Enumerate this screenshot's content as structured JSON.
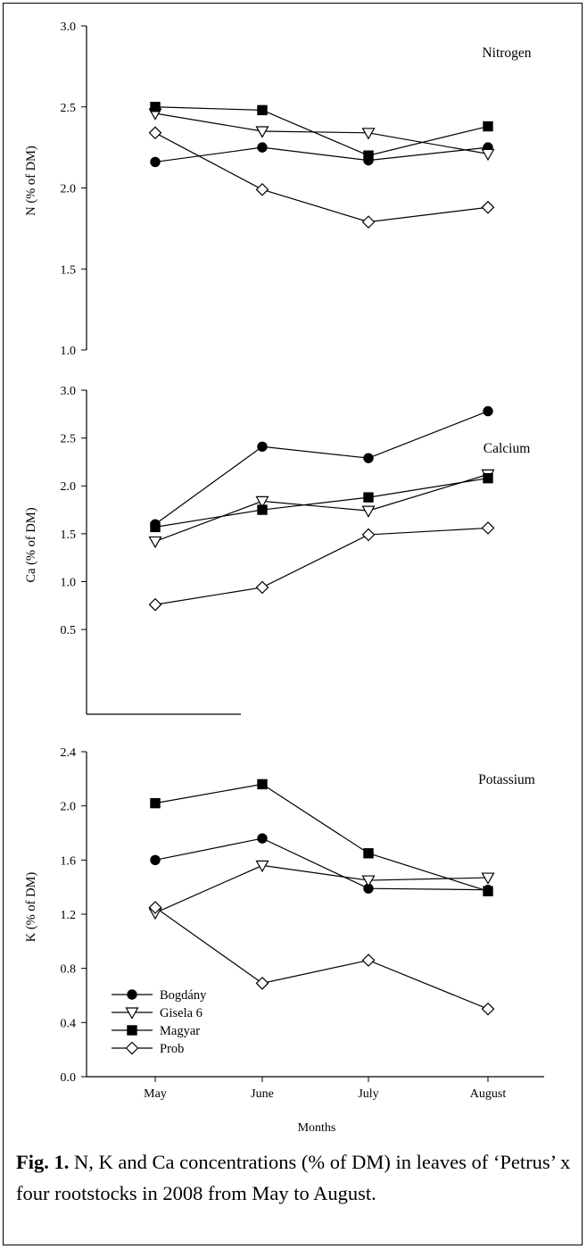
{
  "caption": {
    "label": "Fig. 1.",
    "text": "N, K and Ca concentrations (% of DM) in leaves of ‘Petrus’ x four rootstocks in 2008 from May to August."
  },
  "legend": {
    "entries": [
      "Bogdány",
      "Gisela 6",
      "Magyar",
      "Prob"
    ],
    "placement": "lower-left of Potassium panel"
  },
  "shared_axis": {
    "xlabel": "Months",
    "categories": [
      "May",
      "June",
      "July",
      "August"
    ]
  },
  "chart_data": [
    {
      "type": "line",
      "title": "Nitrogen",
      "ylabel": "N (% of DM)",
      "ylim": [
        1.0,
        3.0
      ],
      "yticks": [
        "1.0",
        "1.5",
        "2.0",
        "2.5",
        "3.0"
      ],
      "categories": [
        "May",
        "June",
        "July",
        "August"
      ],
      "series": [
        {
          "name": "Bogdány",
          "values": [
            2.16,
            2.25,
            2.17,
            2.25
          ]
        },
        {
          "name": "Gisela 6",
          "values": [
            2.46,
            2.35,
            2.34,
            2.21
          ]
        },
        {
          "name": "Magyar",
          "values": [
            2.5,
            2.48,
            2.2,
            2.38
          ]
        },
        {
          "name": "Prob",
          "values": [
            2.34,
            1.99,
            1.79,
            1.88
          ]
        }
      ]
    },
    {
      "type": "line",
      "title": "Calcium",
      "ylabel": "Ca (% of DM)",
      "ylim": [
        0.1,
        3.0
      ],
      "yticks": [
        "0.5",
        "1.0",
        "1.5",
        "2.0",
        "2.5",
        "3.0"
      ],
      "categories": [
        "May",
        "June",
        "July",
        "August"
      ],
      "series": [
        {
          "name": "Bogdány",
          "values": [
            1.6,
            2.41,
            2.29,
            2.78
          ]
        },
        {
          "name": "Gisela 6",
          "values": [
            1.42,
            1.84,
            1.74,
            2.12
          ]
        },
        {
          "name": "Magyar",
          "values": [
            1.57,
            1.75,
            1.88,
            2.08
          ]
        },
        {
          "name": "Prob",
          "values": [
            0.76,
            0.94,
            1.49,
            1.56
          ]
        }
      ]
    },
    {
      "type": "line",
      "title": "Potassium",
      "ylabel": "K (% of DM)",
      "ylim": [
        0.0,
        2.4
      ],
      "yticks": [
        "0.0",
        "0.4",
        "0.8",
        "1.2",
        "1.6",
        "2.0",
        "2.4"
      ],
      "categories": [
        "May",
        "June",
        "July",
        "August"
      ],
      "series": [
        {
          "name": "Bogdány",
          "values": [
            1.6,
            1.76,
            1.39,
            1.38
          ]
        },
        {
          "name": "Gisela 6",
          "values": [
            1.21,
            1.56,
            1.45,
            1.47
          ]
        },
        {
          "name": "Magyar",
          "values": [
            2.02,
            2.16,
            1.65,
            1.37
          ]
        },
        {
          "name": "Prob",
          "values": [
            1.25,
            0.69,
            0.86,
            0.5
          ]
        }
      ]
    }
  ]
}
